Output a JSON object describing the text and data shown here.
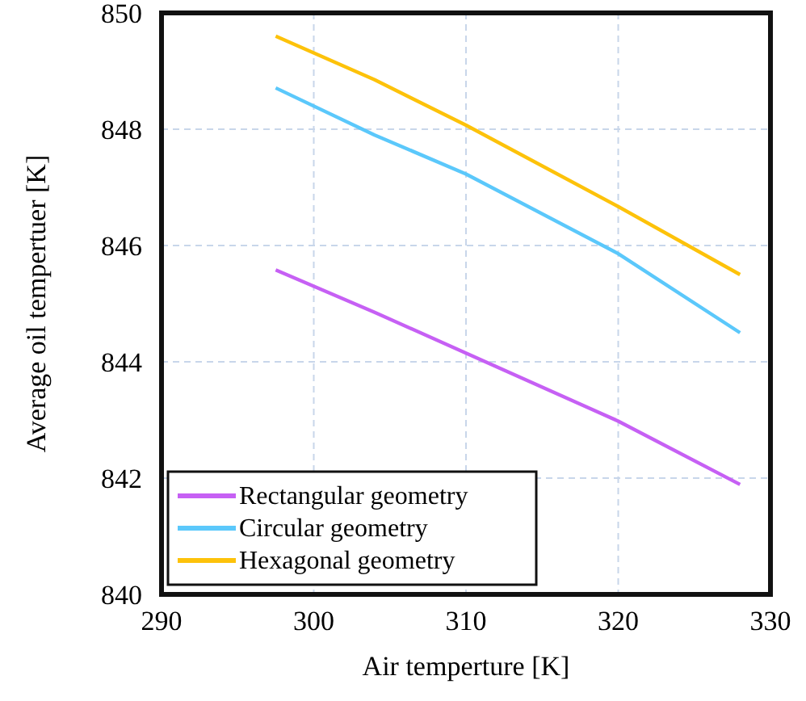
{
  "chart_data": {
    "type": "line",
    "xlabel": "Air temperture [K]",
    "ylabel": "Average oil tempertuer [K]",
    "xlim": [
      290,
      330
    ],
    "xticks": [
      290,
      300,
      310,
      320,
      330
    ],
    "ylim": [
      840,
      850
    ],
    "yticks": [
      840,
      842,
      844,
      846,
      848,
      850
    ],
    "grid": true,
    "legend": "bottom left",
    "line_style": "solid",
    "marker": "none",
    "series": [
      {
        "name": "Rectangular geometry",
        "color": "#c660f4",
        "x": [
          297.5,
          304,
          310,
          320,
          328
        ],
        "values": [
          845.58,
          844.85,
          844.15,
          842.98,
          841.89
        ]
      },
      {
        "name": "Circular geometry",
        "color": "#5bc8fb",
        "x": [
          297.5,
          304,
          310,
          320,
          328
        ],
        "values": [
          848.71,
          847.9,
          847.23,
          845.86,
          844.5
        ]
      },
      {
        "name": "Hexagonal geometry",
        "color": "#fdc20a",
        "x": [
          297.5,
          304,
          310,
          320,
          328
        ],
        "values": [
          849.6,
          848.85,
          848.07,
          846.67,
          845.5
        ]
      }
    ]
  }
}
